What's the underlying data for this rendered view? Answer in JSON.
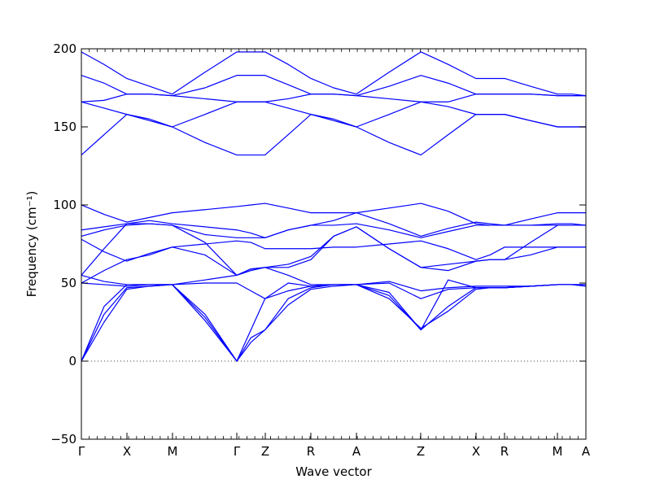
{
  "chart_data": {
    "type": "line",
    "title": "",
    "xlabel": "Wave vector",
    "ylabel": "Frequency (cm⁻¹)",
    "ylim": [
      -50,
      200
    ],
    "yticks": [
      -50,
      0,
      50,
      100,
      150,
      200
    ],
    "ytick_labels": [
      "−50",
      "0",
      "50",
      "100",
      "150",
      "200"
    ],
    "x_unit": "path index 0–1",
    "high_symmetry_points": [
      {
        "label": "Γ",
        "x": 0.0
      },
      {
        "label": "X",
        "x": 0.0903
      },
      {
        "label": "M",
        "x": 0.1806
      },
      {
        "label": "Γ",
        "x": 0.3081
      },
      {
        "label": "Z",
        "x": 0.3645
      },
      {
        "label": "R",
        "x": 0.4548
      },
      {
        "label": "A",
        "x": 0.5452
      },
      {
        "label": "Z",
        "x": 0.6726
      },
      {
        "label": "X",
        "x": 0.7823
      },
      {
        "label": "R",
        "x": 0.8387
      },
      {
        "label": "M",
        "x": 0.9436
      },
      {
        "label": "A",
        "x": 1.0
      }
    ],
    "zero_line": true,
    "line_color": "#0000ff",
    "series": [
      {
        "x": [
          0,
          0.045,
          0.09,
          0.135,
          0.18,
          0.245,
          0.308,
          0.336,
          0.364,
          0.41,
          0.455,
          0.5,
          0.545,
          0.61,
          0.673,
          0.727,
          0.782,
          0.81,
          0.839,
          0.89,
          0.944,
          0.972,
          1.0
        ],
        "y": [
          198,
          190,
          181,
          176,
          171,
          185,
          198,
          198,
          198,
          190,
          181,
          175,
          171,
          185,
          198,
          190,
          181,
          181,
          181,
          176,
          171,
          171,
          170
        ]
      },
      {
        "x": [
          0,
          0.045,
          0.09,
          0.135,
          0.18,
          0.245,
          0.308,
          0.336,
          0.364,
          0.41,
          0.455,
          0.5,
          0.545,
          0.61,
          0.673,
          0.727,
          0.782,
          0.81,
          0.839,
          0.89,
          0.944,
          0.972,
          1.0
        ],
        "y": [
          183,
          178,
          171,
          171,
          170,
          175,
          183,
          183,
          183,
          177,
          171,
          171,
          170,
          176,
          183,
          178,
          171,
          171,
          171,
          171,
          170,
          170,
          170
        ]
      },
      {
        "x": [
          0,
          0.045,
          0.09,
          0.135,
          0.18,
          0.245,
          0.308,
          0.336,
          0.364,
          0.41,
          0.455,
          0.5,
          0.545,
          0.61,
          0.673,
          0.727,
          0.782,
          0.81,
          0.839,
          0.89,
          0.944,
          0.972,
          1.0
        ],
        "y": [
          166,
          167,
          171,
          171,
          170,
          168,
          166,
          166,
          166,
          168,
          171,
          171,
          170,
          168,
          166,
          166,
          171,
          171,
          171,
          171,
          170,
          170,
          170
        ]
      },
      {
        "x": [
          0,
          0.045,
          0.09,
          0.135,
          0.18,
          0.245,
          0.308,
          0.336,
          0.364,
          0.41,
          0.455,
          0.5,
          0.545,
          0.61,
          0.673,
          0.727,
          0.782,
          0.81,
          0.839,
          0.89,
          0.944,
          0.972,
          1.0
        ],
        "y": [
          166,
          162,
          158,
          155,
          150,
          158,
          166,
          166,
          166,
          162,
          158,
          155,
          150,
          158,
          166,
          163,
          158,
          158,
          158,
          154,
          150,
          150,
          150
        ]
      },
      {
        "x": [
          0,
          0.045,
          0.09,
          0.135,
          0.18,
          0.245,
          0.308,
          0.336,
          0.364,
          0.41,
          0.455,
          0.5,
          0.545,
          0.61,
          0.673,
          0.727,
          0.782,
          0.81,
          0.839,
          0.89,
          0.944,
          0.972,
          1.0
        ],
        "y": [
          132,
          145,
          158,
          154,
          150,
          140,
          132,
          132,
          132,
          145,
          158,
          154,
          150,
          140,
          132,
          145,
          158,
          158,
          158,
          154,
          150,
          150,
          150
        ]
      },
      {
        "x": [
          0,
          0.045,
          0.09,
          0.135,
          0.18,
          0.245,
          0.308,
          0.336,
          0.364,
          0.41,
          0.455,
          0.5,
          0.545,
          0.61,
          0.673,
          0.727,
          0.782,
          0.81,
          0.839,
          0.89,
          0.944,
          0.972,
          1.0
        ],
        "y": [
          100,
          94,
          89,
          92,
          95,
          97,
          99,
          100,
          101,
          98,
          95,
          95,
          95,
          98,
          101,
          96,
          88,
          87,
          87,
          91,
          95,
          95,
          95
        ]
      },
      {
        "x": [
          0,
          0.045,
          0.09,
          0.135,
          0.18,
          0.245,
          0.308,
          0.336,
          0.364,
          0.41,
          0.455,
          0.5,
          0.545,
          0.61,
          0.673,
          0.727,
          0.782,
          0.81,
          0.839,
          0.89,
          0.944,
          0.972,
          1.0
        ],
        "y": [
          84,
          86,
          88,
          90,
          88,
          86,
          84,
          82,
          79,
          84,
          87,
          90,
          95,
          88,
          80,
          85,
          89,
          88,
          87,
          87,
          88,
          88,
          87
        ]
      },
      {
        "x": [
          0,
          0.045,
          0.09,
          0.135,
          0.18,
          0.245,
          0.308,
          0.336,
          0.364,
          0.41,
          0.455,
          0.5,
          0.545,
          0.61,
          0.673,
          0.727,
          0.782,
          0.81,
          0.839,
          0.89,
          0.944,
          0.972,
          1.0
        ],
        "y": [
          80,
          84,
          87,
          88,
          87,
          81,
          79,
          79,
          79,
          84,
          87,
          87,
          88,
          84,
          79,
          83,
          87,
          87,
          87,
          87,
          87,
          87,
          87
        ]
      },
      {
        "x": [
          0,
          0.045,
          0.09,
          0.135,
          0.18,
          0.245,
          0.308,
          0.336,
          0.364,
          0.41,
          0.455,
          0.5,
          0.545,
          0.61,
          0.673,
          0.727,
          0.782,
          0.81,
          0.839,
          0.89,
          0.944,
          0.972,
          1.0
        ],
        "y": [
          78,
          70,
          64,
          69,
          73,
          75,
          77,
          76,
          72,
          72,
          72,
          73,
          73,
          75,
          77,
          72,
          65,
          68,
          73,
          73,
          73,
          73,
          73
        ]
      },
      {
        "x": [
          0,
          0.045,
          0.09,
          0.135,
          0.18,
          0.245,
          0.308,
          0.336,
          0.364,
          0.41,
          0.455,
          0.5,
          0.545,
          0.61,
          0.673,
          0.727,
          0.782,
          0.81,
          0.839,
          0.89,
          0.944,
          0.972,
          1.0
        ],
        "y": [
          55,
          72,
          88,
          88,
          87,
          76,
          55,
          58,
          60,
          62,
          67,
          80,
          86,
          72,
          60,
          62,
          64,
          65,
          65,
          76,
          87,
          87,
          87
        ]
      },
      {
        "x": [
          0,
          0.045,
          0.09,
          0.135,
          0.18,
          0.245,
          0.308,
          0.336,
          0.364,
          0.41,
          0.455,
          0.5,
          0.545,
          0.61,
          0.673,
          0.727,
          0.782,
          0.81,
          0.839,
          0.89,
          0.944,
          0.972,
          1.0
        ],
        "y": [
          50,
          58,
          65,
          68,
          73,
          68,
          55,
          59,
          60,
          60,
          65,
          80,
          86,
          72,
          60,
          58,
          64,
          65,
          65,
          68,
          73,
          73,
          73
        ]
      },
      {
        "x": [
          0,
          0.045,
          0.09,
          0.135,
          0.18,
          0.245,
          0.308,
          0.336,
          0.364,
          0.41,
          0.455,
          0.5,
          0.545,
          0.61,
          0.673,
          0.727,
          0.782,
          0.81,
          0.839,
          0.89,
          0.944,
          0.972,
          1.0
        ],
        "y": [
          55,
          51,
          49,
          49,
          49,
          52,
          55,
          59,
          60,
          55,
          49,
          49,
          49,
          51,
          45,
          47,
          48,
          48,
          48,
          48,
          49,
          49,
          49
        ]
      },
      {
        "x": [
          0,
          0.045,
          0.09,
          0.135,
          0.18,
          0.245,
          0.308,
          0.336,
          0.364,
          0.41,
          0.455,
          0.5,
          0.545,
          0.61,
          0.673,
          0.727,
          0.782,
          0.81,
          0.839,
          0.89,
          0.944,
          0.972,
          1.0
        ],
        "y": [
          50,
          49,
          48,
          49,
          49,
          50,
          50,
          45,
          40,
          45,
          48,
          49,
          49,
          50,
          40,
          46,
          47,
          47,
          47,
          48,
          49,
          49,
          48
        ]
      },
      {
        "x": [
          0,
          0.045,
          0.09,
          0.135,
          0.18,
          0.245,
          0.308,
          0.336,
          0.364,
          0.41,
          0.455,
          0.5,
          0.545,
          0.61,
          0.673,
          0.727,
          0.782,
          0.81,
          0.839,
          0.89,
          0.944,
          0.972,
          1.0
        ],
        "y": [
          0,
          35,
          49,
          49,
          49,
          30,
          0,
          20,
          40,
          50,
          48,
          49,
          49,
          44,
          20,
          52,
          47,
          47,
          47,
          48,
          49,
          49,
          49
        ]
      },
      {
        "x": [
          0,
          0.045,
          0.09,
          0.135,
          0.18,
          0.245,
          0.308,
          0.336,
          0.364,
          0.41,
          0.455,
          0.5,
          0.545,
          0.61,
          0.673,
          0.727,
          0.782,
          0.81,
          0.839,
          0.89,
          0.944,
          0.972,
          1.0
        ],
        "y": [
          0,
          30,
          47,
          48,
          49,
          28,
          0,
          15,
          20,
          40,
          47,
          49,
          49,
          42,
          20,
          35,
          47,
          47,
          47,
          48,
          49,
          49,
          49
        ]
      },
      {
        "x": [
          0,
          0.045,
          0.09,
          0.135,
          0.18,
          0.245,
          0.308,
          0.336,
          0.364,
          0.41,
          0.455,
          0.5,
          0.545,
          0.61,
          0.673,
          0.727,
          0.782,
          0.81,
          0.839,
          0.89,
          0.944,
          0.972,
          1.0
        ],
        "y": [
          0,
          25,
          46,
          48,
          49,
          26,
          0,
          12,
          20,
          36,
          46,
          48,
          49,
          40,
          21,
          32,
          46,
          47,
          47,
          48,
          49,
          49,
          48
        ]
      }
    ]
  }
}
